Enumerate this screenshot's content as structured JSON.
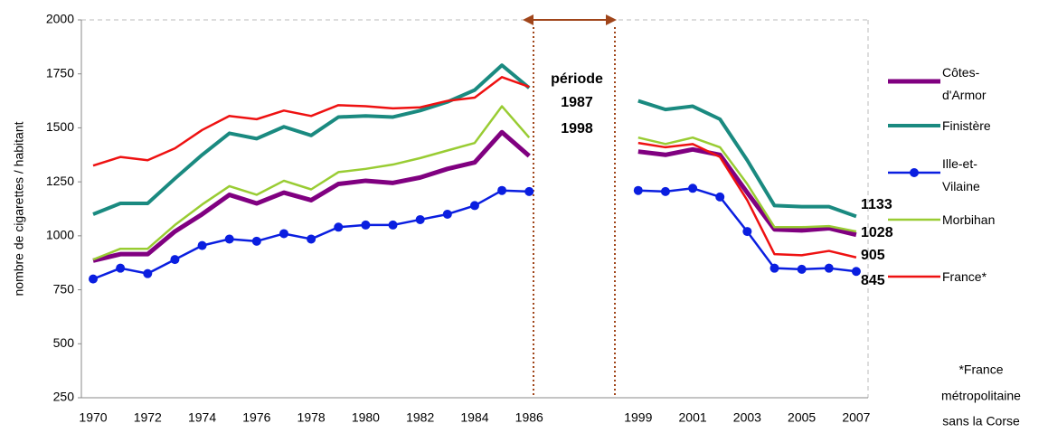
{
  "chart_data": {
    "type": "line",
    "y_label": "nombre de cigarettes / habitant",
    "categories": [
      "1970",
      null,
      "1972",
      null,
      "1974",
      null,
      "1976",
      null,
      "1978",
      null,
      "1980",
      null,
      "1982",
      null,
      "1984",
      null,
      "1986",
      null,
      null,
      null,
      "1999",
      null,
      "2001",
      null,
      "2003",
      null,
      "2005",
      null,
      "2007"
    ],
    "series": [
      {
        "name": "Côtes-d'Armor",
        "color": "#800080",
        "values": [
          885,
          915,
          915,
          1020,
          1100,
          1190,
          1150,
          1200,
          1165,
          1240,
          1255,
          1245,
          1270,
          1310,
          1340,
          1480,
          1370,
          null,
          null,
          null,
          1390,
          1375,
          1400,
          1375,
          1200,
          1030,
          1025,
          1035,
          1005
        ]
      },
      {
        "name": "Finistère",
        "color": "#1a8a80",
        "values": [
          1100,
          1150,
          1150,
          1265,
          1375,
          1475,
          1450,
          1505,
          1465,
          1550,
          1555,
          1550,
          1580,
          1620,
          1675,
          1790,
          1685,
          null,
          null,
          null,
          1625,
          1585,
          1600,
          1540,
          1350,
          1140,
          1135,
          1135,
          1090
        ]
      },
      {
        "name": "Ille-et-Vilaine",
        "color": "#0a1ee0",
        "marker": "circle",
        "values": [
          800,
          850,
          825,
          890,
          955,
          985,
          975,
          1010,
          985,
          1040,
          1050,
          1050,
          1075,
          1100,
          1140,
          1210,
          1205,
          null,
          null,
          null,
          1210,
          1205,
          1220,
          1180,
          1020,
          850,
          845,
          850,
          835
        ]
      },
      {
        "name": "Morbihan",
        "color": "#99cc33",
        "values": [
          890,
          940,
          940,
          1050,
          1145,
          1230,
          1190,
          1255,
          1215,
          1295,
          1310,
          1330,
          1360,
          1395,
          1430,
          1600,
          1455,
          null,
          null,
          null,
          1455,
          1425,
          1455,
          1410,
          1240,
          1040,
          1040,
          1045,
          1020
        ]
      },
      {
        "name": "France*",
        "color": "#ee1111",
        "values": [
          1325,
          1365,
          1350,
          1405,
          1490,
          1555,
          1540,
          1580,
          1555,
          1605,
          1600,
          1590,
          1595,
          1625,
          1640,
          1735,
          1690,
          null,
          null,
          null,
          1430,
          1410,
          1425,
          1365,
          1165,
          915,
          910,
          930,
          900
        ]
      }
    ],
    "ylim": [
      250,
      2000
    ],
    "yticks": [
      250,
      500,
      750,
      1000,
      1250,
      1500,
      1750,
      2000
    ],
    "annotations": [
      "période",
      "1987",
      "1998"
    ],
    "end_labels": [
      "1133",
      "1028",
      "905",
      "845"
    ],
    "footnote": [
      "*France",
      "métropolitaine",
      "sans la Corse"
    ]
  }
}
